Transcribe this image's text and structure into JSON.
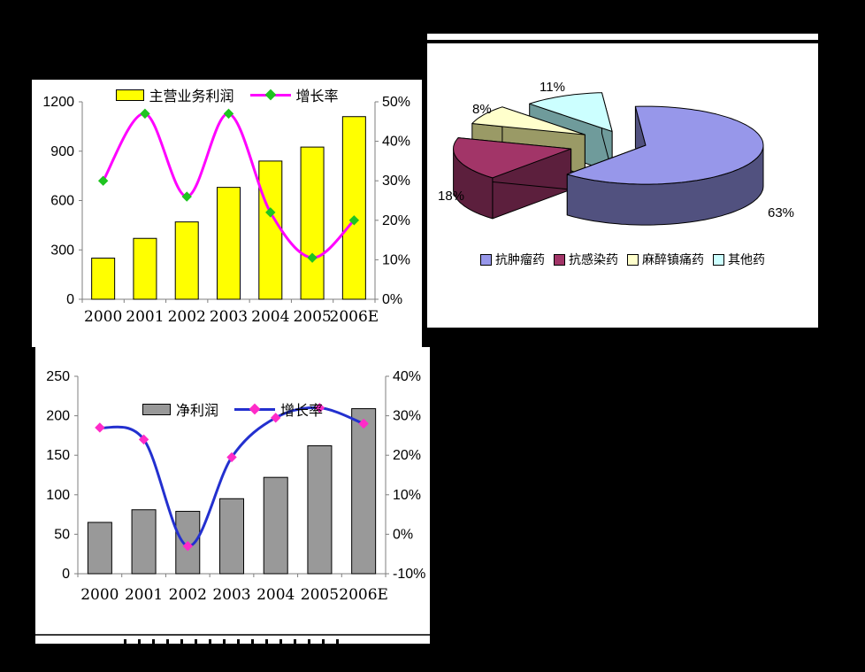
{
  "page": {
    "background": "#000000",
    "panel_background": "#FFFFFF"
  },
  "chart_data": [
    {
      "id": "main-profit",
      "type": "bar",
      "combo": true,
      "categories": [
        "2000",
        "2001",
        "2002",
        "2003",
        "2004",
        "2005",
        "2006E"
      ],
      "series": [
        {
          "name": "主营业务利润",
          "type": "bar",
          "axis": "left",
          "values": [
            250,
            370,
            470,
            680,
            840,
            925,
            1110
          ],
          "fill": "#FFFF00",
          "stroke": "#000000"
        },
        {
          "name": "增长率",
          "type": "line",
          "axis": "right",
          "unit": "%",
          "values": [
            30,
            47,
            26,
            47,
            22,
            10.5,
            20
          ],
          "color": "#FF00FF",
          "marker_color": "#1FC421"
        }
      ],
      "left_axis": {
        "min": 0,
        "max": 1200,
        "step": 300,
        "labels": [
          "0",
          "300",
          "600",
          "900",
          "1200"
        ]
      },
      "right_axis": {
        "min": 0,
        "max": 50,
        "step": 10,
        "labels": [
          "0%",
          "10%",
          "20%",
          "30%",
          "40%",
          "50%"
        ]
      },
      "legend_position": "top",
      "grid": false
    },
    {
      "id": "drug-mix",
      "type": "pie",
      "labels": [
        "抗肿瘤药",
        "抗感染药",
        "麻醉镇痛药",
        "其他药"
      ],
      "values": [
        63,
        18,
        8,
        11
      ],
      "data_labels": [
        "63%",
        "18%",
        "8%",
        "11%"
      ],
      "top_colors": [
        "#9797EA",
        "#A23568",
        "#FFFFCC",
        "#CCFFFF"
      ],
      "side_colors": [
        "#51517F",
        "#5C1F3D",
        "#9A9A66",
        "#6F9B9B"
      ],
      "start_angle_deg": -95,
      "legend_position": "bottom"
    },
    {
      "id": "net-profit",
      "type": "bar",
      "combo": true,
      "categories": [
        "2000",
        "2001",
        "2002",
        "2003",
        "2004",
        "2005",
        "2006E"
      ],
      "series": [
        {
          "name": "净利润",
          "type": "bar",
          "axis": "left",
          "values": [
            65,
            81,
            79,
            95,
            122,
            162,
            209
          ],
          "fill": "#999999",
          "stroke": "#000000"
        },
        {
          "name": "增长率",
          "type": "line",
          "axis": "right",
          "unit": "%",
          "values": [
            27,
            24,
            -3,
            19.5,
            29.5,
            32,
            28
          ],
          "color": "#2330CF",
          "marker_color": "#FF2BC8"
        }
      ],
      "left_axis": {
        "min": 0,
        "max": 250,
        "step": 50,
        "labels": [
          "0",
          "50",
          "100",
          "150",
          "200",
          "250"
        ]
      },
      "right_axis": {
        "min": -10,
        "max": 40,
        "step": 10,
        "labels": [
          "-10%",
          "0%",
          "10%",
          "20%",
          "30%",
          "40%"
        ]
      },
      "legend_position": "inside-top",
      "grid": false
    }
  ]
}
